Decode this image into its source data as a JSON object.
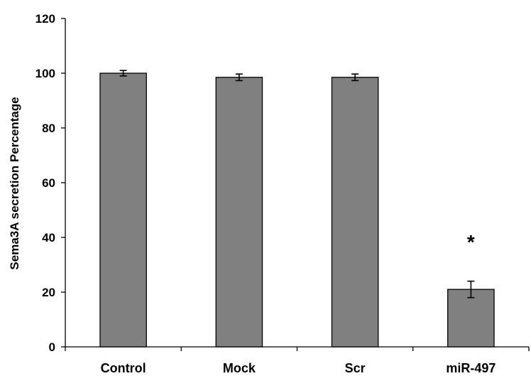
{
  "chart_data": {
    "type": "bar",
    "categories": [
      "Control",
      "Mock",
      "Scr",
      "miR-497"
    ],
    "values": [
      100,
      98.5,
      98.5,
      21
    ],
    "errors": [
      1,
      1.2,
      1.2,
      3
    ],
    "ylabel": "Sema3A secretion Percentage",
    "xlabel": "",
    "ylim": [
      0,
      120
    ],
    "yticks": [
      0,
      20,
      40,
      60,
      80,
      100,
      120
    ],
    "grid": false,
    "bar_color": "#808080",
    "annotations": [
      {
        "category": "miR-497",
        "text": "*"
      }
    ]
  }
}
